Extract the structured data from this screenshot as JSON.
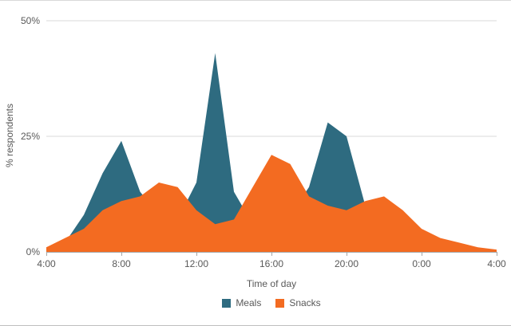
{
  "chart_data": {
    "type": "area",
    "title": "",
    "xlabel": "Time of day",
    "ylabel": "% respondents",
    "x_hours": [
      4,
      5,
      6,
      7,
      8,
      9,
      10,
      11,
      12,
      13,
      14,
      15,
      16,
      17,
      18,
      19,
      20,
      21,
      22,
      23,
      24,
      25,
      26,
      27,
      28
    ],
    "x_tick_hours": [
      4,
      8,
      12,
      16,
      20,
      24,
      28
    ],
    "x_tick_labels": [
      "4:00",
      "8:00",
      "12:00",
      "16:00",
      "20:00",
      "0:00",
      "4:00"
    ],
    "y_ticks": [
      {
        "value": 0,
        "label": "0%"
      },
      {
        "value": 25,
        "label": "25%"
      },
      {
        "value": 50,
        "label": "50%"
      }
    ],
    "ylim": [
      0,
      50
    ],
    "grid": "horizontal",
    "legend_position": "bottom",
    "colors": {
      "meals": "#2e6b80",
      "snacks": "#f36b21",
      "gridline": "#d9d9d9",
      "axis": "#a6a6a6",
      "text": "#595959"
    },
    "series": [
      {
        "name": "Meals",
        "color": "#2e6b80",
        "values": [
          1,
          2,
          8,
          17,
          24,
          13,
          8,
          7,
          15,
          43,
          13,
          6,
          6,
          8,
          14,
          28,
          25,
          10,
          4,
          2,
          1,
          0.5,
          0,
          0,
          0
        ]
      },
      {
        "name": "Snacks",
        "color": "#f36b21",
        "values": [
          1,
          3,
          5,
          9,
          11,
          12,
          15,
          14,
          9,
          6,
          7,
          14,
          21,
          19,
          12,
          10,
          9,
          11,
          12,
          9,
          5,
          3,
          2,
          1,
          0.5
        ]
      }
    ]
  }
}
